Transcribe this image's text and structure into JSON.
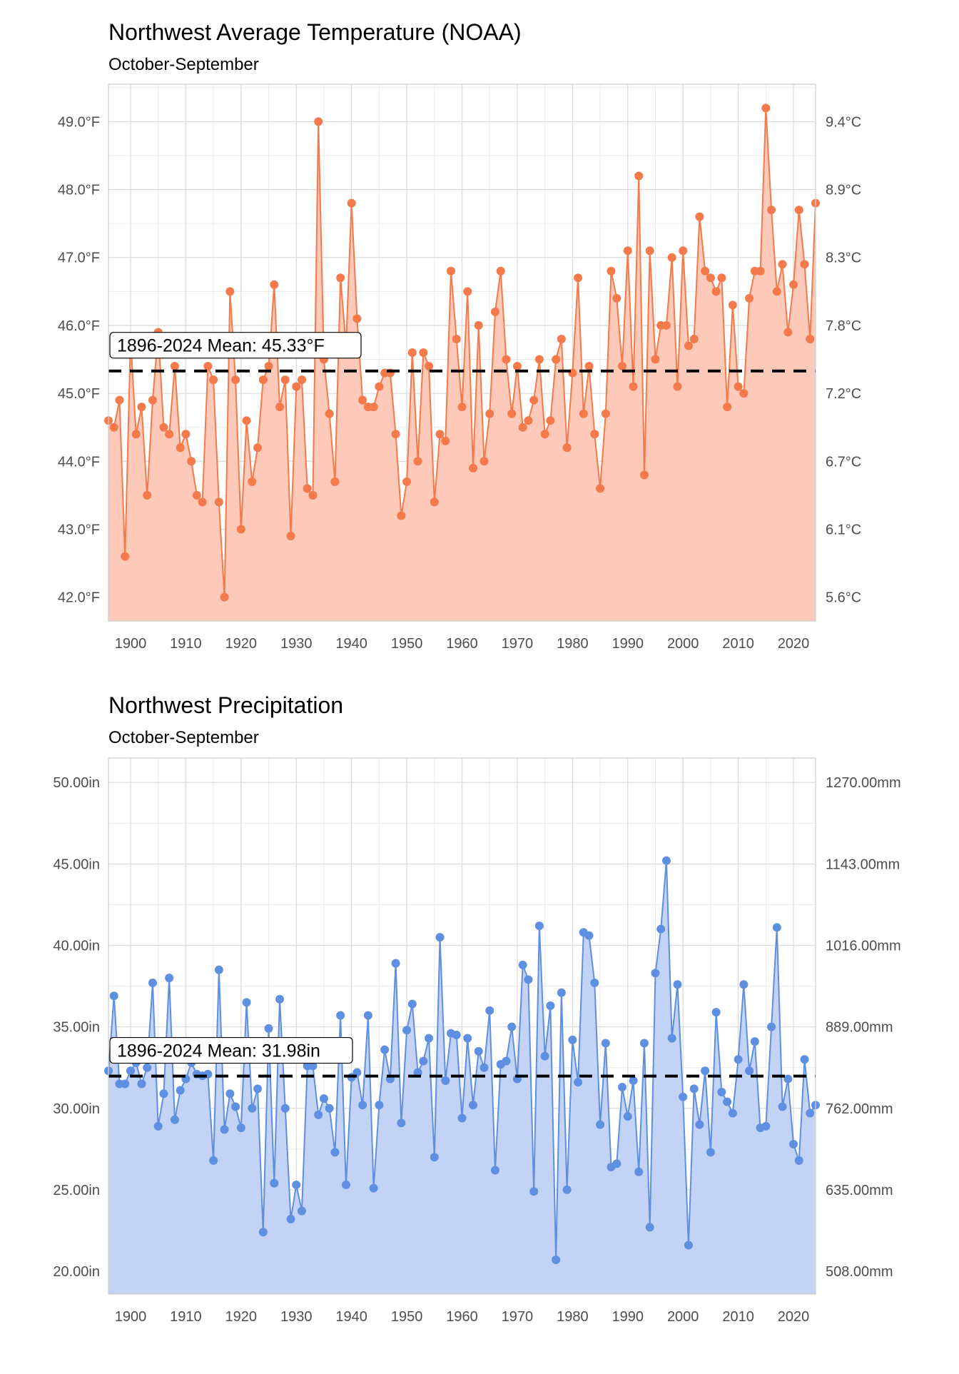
{
  "chart_data": [
    {
      "type": "area",
      "title": "Northwest Average Temperature (NOAA)",
      "subtitle": "October-September",
      "xlabel": "",
      "ylabel": "",
      "x_ticks": [
        "1900",
        "1910",
        "1920",
        "1930",
        "1940",
        "1950",
        "1960",
        "1970",
        "1980",
        "1990",
        "2000",
        "2010",
        "2020"
      ],
      "y_ticks_left": [
        "42.0°F",
        "43.0°F",
        "44.0°F",
        "45.0°F",
        "46.0°F",
        "47.0°F",
        "48.0°F",
        "49.0°F"
      ],
      "y_ticks_right": [
        "5.6°C",
        "6.1°C",
        "6.7°C",
        "7.2°C",
        "7.8°C",
        "8.3°C",
        "8.9°C",
        "9.4°C"
      ],
      "xlim": [
        1896,
        2024
      ],
      "ylim": [
        41.65,
        49.55
      ],
      "grid": true,
      "mean": 45.33,
      "mean_label": "1896-2024 Mean: 45.33°F",
      "colors": {
        "line": "#f47a4c",
        "fill": "#fdc9b8",
        "mean": "#000000"
      },
      "x": [
        1896,
        1897,
        1898,
        1899,
        1900,
        1901,
        1902,
        1903,
        1904,
        1905,
        1906,
        1907,
        1908,
        1909,
        1910,
        1911,
        1912,
        1913,
        1914,
        1915,
        1916,
        1917,
        1918,
        1919,
        1920,
        1921,
        1922,
        1923,
        1924,
        1925,
        1926,
        1927,
        1928,
        1929,
        1930,
        1931,
        1932,
        1933,
        1934,
        1935,
        1936,
        1937,
        1938,
        1939,
        1940,
        1941,
        1942,
        1943,
        1944,
        1945,
        1946,
        1947,
        1948,
        1949,
        1950,
        1951,
        1952,
        1953,
        1954,
        1955,
        1956,
        1957,
        1958,
        1959,
        1960,
        1961,
        1962,
        1963,
        1964,
        1965,
        1966,
        1967,
        1968,
        1969,
        1970,
        1971,
        1972,
        1973,
        1974,
        1975,
        1976,
        1977,
        1978,
        1979,
        1980,
        1981,
        1982,
        1983,
        1984,
        1985,
        1986,
        1987,
        1988,
        1989,
        1990,
        1991,
        1992,
        1993,
        1994,
        1995,
        1996,
        1997,
        1998,
        1999,
        2000,
        2001,
        2002,
        2003,
        2004,
        2005,
        2006,
        2007,
        2008,
        2009,
        2010,
        2011,
        2012,
        2013,
        2014,
        2015,
        2016,
        2017,
        2018,
        2019,
        2020,
        2021,
        2022,
        2023,
        2024
      ],
      "values": [
        44.6,
        44.5,
        44.9,
        42.6,
        45.8,
        44.4,
        44.8,
        43.5,
        44.9,
        45.9,
        44.5,
        44.4,
        45.4,
        44.2,
        44.4,
        44.0,
        43.5,
        43.4,
        45.4,
        45.2,
        43.4,
        42.0,
        46.5,
        45.2,
        43.0,
        44.6,
        43.7,
        44.2,
        45.2,
        45.4,
        46.6,
        44.8,
        45.2,
        42.9,
        45.1,
        45.2,
        43.6,
        43.5,
        49.0,
        45.5,
        44.7,
        43.7,
        46.7,
        45.7,
        47.8,
        46.1,
        44.9,
        44.8,
        44.8,
        45.1,
        45.3,
        45.3,
        44.4,
        43.2,
        43.7,
        45.6,
        44.0,
        45.6,
        45.4,
        43.4,
        44.4,
        44.3,
        46.8,
        45.8,
        44.8,
        46.5,
        43.9,
        46.0,
        44.0,
        44.7,
        46.2,
        46.8,
        45.5,
        44.7,
        45.4,
        44.5,
        44.6,
        44.9,
        45.5,
        44.4,
        44.6,
        45.5,
        45.8,
        44.2,
        45.3,
        46.7,
        44.7,
        45.4,
        44.4,
        43.6,
        44.7,
        46.8,
        46.4,
        45.4,
        47.1,
        45.1,
        48.2,
        43.8,
        47.1,
        45.5,
        46.0,
        46.0,
        47.0,
        45.1,
        47.1,
        45.7,
        45.8,
        47.6,
        46.8,
        46.7,
        46.5,
        46.7,
        44.8,
        46.3,
        45.1,
        45.0,
        46.4,
        46.8,
        46.8,
        49.2,
        47.7,
        46.5,
        46.9,
        45.9,
        46.6,
        47.7,
        46.9,
        45.8,
        47.8
      ]
    },
    {
      "type": "area",
      "title": "Northwest Precipitation",
      "subtitle": "October-September",
      "xlabel": "",
      "ylabel": "",
      "x_ticks": [
        "1900",
        "1910",
        "1920",
        "1930",
        "1940",
        "1950",
        "1960",
        "1970",
        "1980",
        "1990",
        "2000",
        "2010",
        "2020"
      ],
      "y_ticks_left": [
        "20.00in",
        "25.00in",
        "30.00in",
        "35.00in",
        "40.00in",
        "45.00in",
        "50.00in"
      ],
      "y_ticks_right": [
        "508.00mm",
        "635.00mm",
        "762.00mm",
        "889.00mm",
        "1016.00mm",
        "1143.00mm",
        "1270.00mm"
      ],
      "xlim": [
        1896,
        2024
      ],
      "ylim": [
        18.6,
        51.5
      ],
      "grid": true,
      "mean": 31.98,
      "mean_label": "1896-2024 Mean: 31.98in",
      "colors": {
        "line": "#5f8fe0",
        "fill": "#c2d3f5",
        "mean": "#000000"
      },
      "x": [
        1896,
        1897,
        1898,
        1899,
        1900,
        1901,
        1902,
        1903,
        1904,
        1905,
        1906,
        1907,
        1908,
        1909,
        1910,
        1911,
        1912,
        1913,
        1914,
        1915,
        1916,
        1917,
        1918,
        1919,
        1920,
        1921,
        1922,
        1923,
        1924,
        1925,
        1926,
        1927,
        1928,
        1929,
        1930,
        1931,
        1932,
        1933,
        1934,
        1935,
        1936,
        1937,
        1938,
        1939,
        1940,
        1941,
        1942,
        1943,
        1944,
        1945,
        1946,
        1947,
        1948,
        1949,
        1950,
        1951,
        1952,
        1953,
        1954,
        1955,
        1956,
        1957,
        1958,
        1959,
        1960,
        1961,
        1962,
        1963,
        1964,
        1965,
        1966,
        1967,
        1968,
        1969,
        1970,
        1971,
        1972,
        1973,
        1974,
        1975,
        1976,
        1977,
        1978,
        1979,
        1980,
        1981,
        1982,
        1983,
        1984,
        1985,
        1986,
        1987,
        1988,
        1989,
        1990,
        1991,
        1992,
        1993,
        1994,
        1995,
        1996,
        1997,
        1998,
        1999,
        2000,
        2001,
        2002,
        2003,
        2004,
        2005,
        2006,
        2007,
        2008,
        2009,
        2010,
        2011,
        2012,
        2013,
        2014,
        2015,
        2016,
        2017,
        2018,
        2019,
        2020,
        2021,
        2022,
        2023,
        2024
      ],
      "values": [
        32.3,
        36.9,
        31.5,
        31.5,
        32.3,
        32.8,
        31.5,
        32.5,
        37.7,
        28.9,
        30.9,
        38.0,
        29.3,
        31.1,
        31.8,
        32.8,
        32.1,
        32.0,
        32.1,
        26.8,
        38.5,
        28.7,
        30.9,
        30.1,
        28.8,
        36.5,
        30.0,
        31.2,
        22.4,
        34.9,
        25.4,
        36.7,
        30.0,
        23.2,
        25.3,
        23.7,
        32.6,
        32.6,
        29.6,
        30.6,
        30.0,
        27.3,
        35.7,
        25.3,
        31.9,
        32.2,
        30.2,
        35.7,
        25.1,
        30.2,
        33.6,
        31.8,
        38.9,
        29.1,
        34.8,
        36.4,
        32.2,
        32.9,
        34.3,
        27.0,
        40.5,
        31.7,
        34.6,
        34.5,
        29.4,
        34.3,
        30.2,
        33.5,
        32.5,
        36.0,
        26.2,
        32.7,
        32.9,
        35.0,
        31.8,
        38.8,
        37.9,
        24.9,
        41.2,
        33.2,
        36.3,
        20.7,
        37.1,
        25.0,
        34.2,
        31.6,
        40.8,
        40.6,
        37.7,
        29.0,
        34.0,
        26.4,
        26.6,
        31.3,
        29.5,
        31.7,
        26.1,
        34.0,
        22.7,
        38.3,
        41.0,
        45.2,
        34.3,
        37.6,
        30.7,
        21.6,
        31.2,
        29.0,
        32.3,
        27.3,
        35.9,
        31.0,
        30.4,
        29.7,
        33.0,
        37.6,
        32.3,
        34.1,
        28.8,
        28.9,
        35.0,
        41.1,
        30.1,
        31.8,
        27.8,
        26.8,
        33.0,
        29.7,
        30.2
      ]
    }
  ]
}
